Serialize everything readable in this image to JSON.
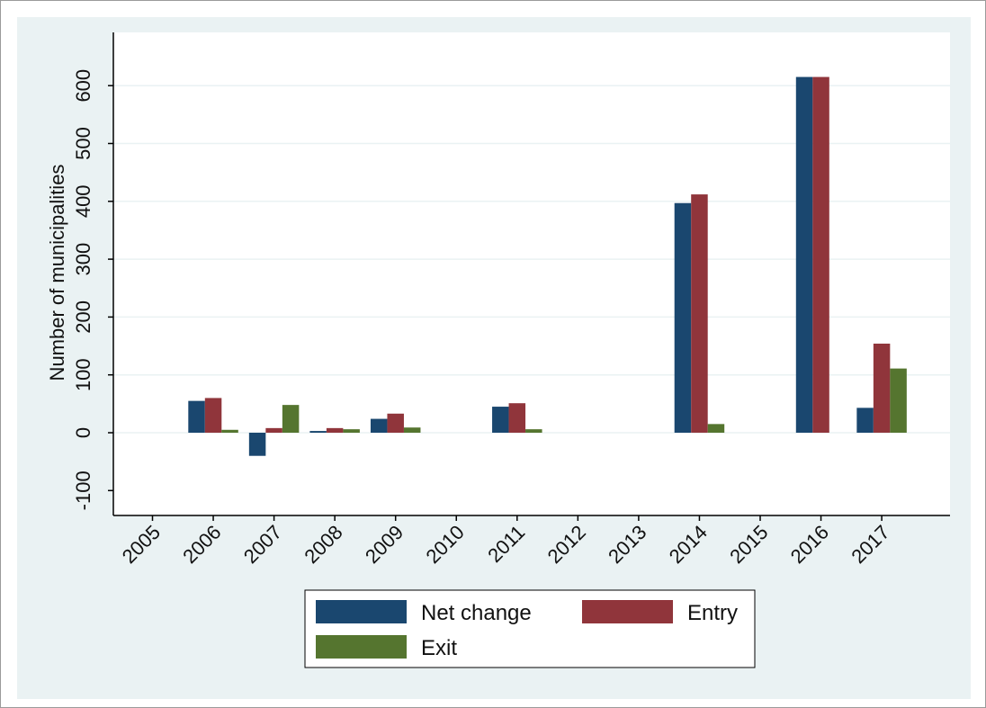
{
  "colors": {
    "outer_background": "#eaf2f3",
    "plot_background": "#ffffff",
    "grid": "#eaf2f3",
    "axis": "#000000"
  },
  "chart_data": {
    "type": "bar",
    "title": "",
    "xlabel": "",
    "ylabel": "Number of municipalities",
    "categories": [
      "2005",
      "2006",
      "2007",
      "2008",
      "2009",
      "2010",
      "2011",
      "2012",
      "2013",
      "2014",
      "2015",
      "2016",
      "2017"
    ],
    "series": [
      {
        "name": "Net change",
        "color": "#1a476f",
        "values": [
          0,
          55,
          -40,
          3,
          24,
          0,
          45,
          0,
          0,
          397,
          0,
          615,
          43
        ]
      },
      {
        "name": "Entry",
        "color": "#90353b",
        "values": [
          0,
          60,
          8,
          8,
          33,
          0,
          51,
          0,
          0,
          412,
          0,
          615,
          154
        ]
      },
      {
        "name": "Exit",
        "color": "#55752f",
        "values": [
          0,
          5,
          48,
          6,
          9,
          0,
          6,
          0,
          0,
          15,
          0,
          0,
          111
        ]
      }
    ],
    "yticks": [
      -100,
      0,
      100,
      200,
      300,
      400,
      500,
      600
    ],
    "ytick_labels": [
      "-100",
      "0",
      "100",
      "200",
      "300",
      "400",
      "500",
      "600"
    ],
    "ylim": [
      -140,
      690
    ],
    "grid": true,
    "legend_position": "bottom"
  }
}
